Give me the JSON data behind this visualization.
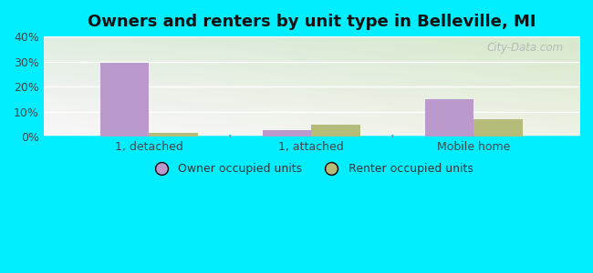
{
  "title": "Owners and renters by unit type in Belleville, MI",
  "categories": [
    "1, detached",
    "1, attached",
    "Mobile home"
  ],
  "owner_values": [
    29.5,
    2.5,
    15.0
  ],
  "renter_values": [
    1.5,
    5.0,
    7.0
  ],
  "owner_color": "#bb99cc",
  "renter_color": "#b5bc7a",
  "ylim": [
    0,
    40
  ],
  "yticks": [
    0,
    10,
    20,
    30,
    40
  ],
  "ytick_labels": [
    "0%",
    "10%",
    "20%",
    "30%",
    "40%"
  ],
  "bar_width": 0.3,
  "outer_background": "#00eeff",
  "legend_labels": [
    "Owner occupied units",
    "Renter occupied units"
  ],
  "watermark": "City-Data.com",
  "title_fontsize": 13,
  "axis_fontsize": 9,
  "legend_fontsize": 9
}
